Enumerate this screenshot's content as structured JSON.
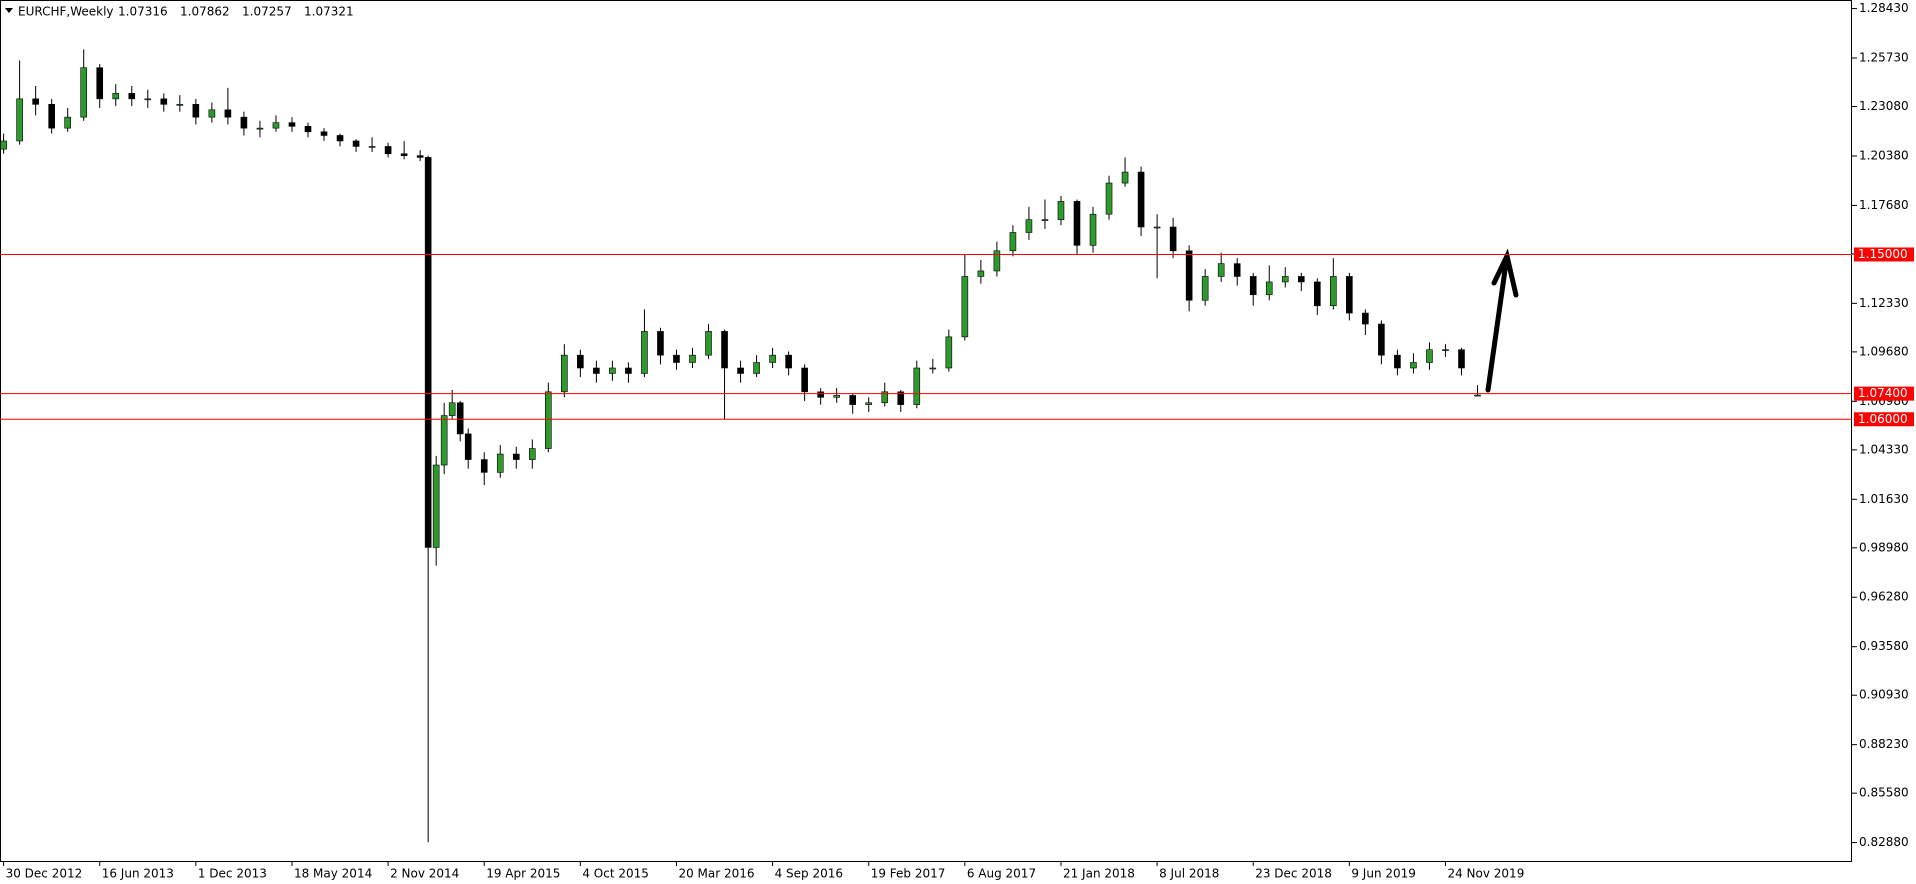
{
  "chart_data": {
    "type": "candlestick",
    "title": "EURCHF,Weekly",
    "x": [
      0,
      4,
      8,
      12,
      16,
      20,
      24,
      28,
      32,
      36,
      40,
      44,
      48,
      52,
      56,
      60,
      64,
      68,
      72,
      76,
      80,
      84,
      88,
      92,
      96,
      100,
      104,
      106,
      108,
      110,
      112,
      114,
      116,
      120,
      124,
      128,
      132,
      136,
      140,
      144,
      148,
      152,
      156,
      160,
      164,
      168,
      172,
      176,
      180,
      184,
      188,
      192,
      196,
      200,
      204,
      208,
      212,
      216,
      220,
      224,
      228,
      232,
      236,
      240,
      244,
      248,
      252,
      256,
      260,
      264,
      268,
      272,
      276,
      280,
      284,
      288,
      292,
      296,
      300,
      304,
      308,
      312,
      316,
      320,
      324,
      328,
      332,
      336,
      340,
      344,
      348,
      352,
      356,
      360,
      364,
      368
    ],
    "open": [
      1.2075,
      1.212,
      1.235,
      1.232,
      1.219,
      1.225,
      1.252,
      1.235,
      1.238,
      1.235,
      1.235,
      1.232,
      1.232,
      1.225,
      1.229,
      1.225,
      1.219,
      1.219,
      1.222,
      1.22,
      1.217,
      1.215,
      1.212,
      1.209,
      1.209,
      1.205,
      1.204,
      1.203,
      0.99,
      1.035,
      1.062,
      1.069,
      1.052,
      1.038,
      1.031,
      1.041,
      1.038,
      1.044,
      1.075,
      1.095,
      1.088,
      1.085,
      1.088,
      1.085,
      1.108,
      1.095,
      1.091,
      1.095,
      1.108,
      1.088,
      1.085,
      1.091,
      1.095,
      1.088,
      1.075,
      1.072,
      1.073,
      1.068,
      1.069,
      1.075,
      1.068,
      1.088,
      1.088,
      1.105,
      1.138,
      1.141,
      1.152,
      1.162,
      1.169,
      1.169,
      1.179,
      1.155,
      1.172,
      1.189,
      1.195,
      1.165,
      1.165,
      1.152,
      1.125,
      1.138,
      1.145,
      1.138,
      1.128,
      1.135,
      1.138,
      1.135,
      1.122,
      1.138,
      1.118,
      1.112,
      1.095,
      1.088,
      1.091,
      1.098,
      1.098,
      1.07316
    ],
    "high": [
      1.216,
      1.256,
      1.242,
      1.235,
      1.23,
      1.262,
      1.254,
      1.243,
      1.242,
      1.24,
      1.238,
      1.237,
      1.235,
      1.233,
      1.241,
      1.228,
      1.223,
      1.226,
      1.225,
      1.222,
      1.219,
      1.216,
      1.213,
      1.214,
      1.211,
      1.212,
      1.207,
      1.204,
      1.04,
      1.069,
      1.076,
      1.07,
      1.055,
      1.042,
      1.046,
      1.045,
      1.049,
      1.08,
      1.101,
      1.098,
      1.092,
      1.092,
      1.091,
      1.12,
      1.11,
      1.098,
      1.099,
      1.112,
      1.109,
      1.092,
      1.095,
      1.099,
      1.097,
      1.09,
      1.077,
      1.077,
      1.074,
      1.072,
      1.08,
      1.076,
      1.092,
      1.093,
      1.109,
      1.15,
      1.147,
      1.157,
      1.166,
      1.176,
      1.18,
      1.182,
      1.18,
      1.176,
      1.193,
      1.203,
      1.198,
      1.172,
      1.17,
      1.155,
      1.142,
      1.151,
      1.148,
      1.14,
      1.144,
      1.143,
      1.14,
      1.137,
      1.148,
      1.14,
      1.12,
      1.114,
      1.098,
      1.096,
      1.102,
      1.101,
      1.099,
      1.07862
    ],
    "low": [
      1.205,
      1.21,
      1.226,
      1.216,
      1.217,
      1.223,
      1.23,
      1.231,
      1.231,
      1.23,
      1.228,
      1.228,
      1.221,
      1.222,
      1.221,
      1.215,
      1.214,
      1.217,
      1.217,
      1.214,
      1.212,
      1.209,
      1.206,
      1.206,
      1.203,
      1.202,
      1.201,
      0.829,
      0.98,
      1.03,
      1.06,
      1.048,
      1.033,
      1.024,
      1.028,
      1.033,
      1.033,
      1.042,
      1.072,
      1.083,
      1.08,
      1.081,
      1.08,
      1.083,
      1.09,
      1.087,
      1.088,
      1.093,
      1.06,
      1.08,
      1.083,
      1.088,
      1.084,
      1.07,
      1.068,
      1.069,
      1.063,
      1.064,
      1.067,
      1.064,
      1.066,
      1.085,
      1.086,
      1.103,
      1.134,
      1.138,
      1.149,
      1.158,
      1.164,
      1.166,
      1.15,
      1.151,
      1.169,
      1.187,
      1.16,
      1.137,
      1.148,
      1.119,
      1.122,
      1.135,
      1.133,
      1.122,
      1.125,
      1.132,
      1.13,
      1.117,
      1.12,
      1.114,
      1.106,
      1.09,
      1.084,
      1.085,
      1.087,
      1.094,
      1.084,
      1.07257
    ],
    "close": [
      1.212,
      1.235,
      1.232,
      1.219,
      1.225,
      1.252,
      1.235,
      1.238,
      1.235,
      1.235,
      1.232,
      1.232,
      1.225,
      1.229,
      1.225,
      1.219,
      1.219,
      1.222,
      1.22,
      1.217,
      1.215,
      1.212,
      1.209,
      1.209,
      1.205,
      1.204,
      1.203,
      0.99,
      1.035,
      1.062,
      1.069,
      1.052,
      1.038,
      1.031,
      1.041,
      1.038,
      1.044,
      1.075,
      1.095,
      1.088,
      1.085,
      1.088,
      1.085,
      1.108,
      1.095,
      1.091,
      1.095,
      1.108,
      1.088,
      1.085,
      1.091,
      1.095,
      1.088,
      1.075,
      1.072,
      1.073,
      1.068,
      1.069,
      1.075,
      1.068,
      1.088,
      1.088,
      1.105,
      1.138,
      1.141,
      1.152,
      1.162,
      1.169,
      1.169,
      1.179,
      1.155,
      1.172,
      1.189,
      1.195,
      1.165,
      1.165,
      1.152,
      1.125,
      1.138,
      1.145,
      1.138,
      1.128,
      1.135,
      1.138,
      1.135,
      1.122,
      1.138,
      1.118,
      1.112,
      1.095,
      1.088,
      1.091,
      1.098,
      1.098,
      1.088,
      1.07321
    ],
    "up_color": "#2e9a2e",
    "down_color": "#000000",
    "xlim": [
      -0.9,
      461.5
    ],
    "xticks": [
      {
        "value": 0,
        "label": "30 Dec 2012"
      },
      {
        "value": 24,
        "label": "16 Jun 2013"
      },
      {
        "value": 48,
        "label": "1 Dec 2013"
      },
      {
        "value": 72,
        "label": "18 May 2014"
      },
      {
        "value": 96,
        "label": "2 Nov 2014"
      },
      {
        "value": 120,
        "label": "19 Apr 2015"
      },
      {
        "value": 144,
        "label": "4 Oct 2015"
      },
      {
        "value": 168,
        "label": "20 Mar 2016"
      },
      {
        "value": 192,
        "label": "4 Sep 2016"
      },
      {
        "value": 216,
        "label": "19 Feb 2017"
      },
      {
        "value": 240,
        "label": "6 Aug 2017"
      },
      {
        "value": 264,
        "label": "21 Jan 2018"
      },
      {
        "value": 288,
        "label": "8 Jul 2018"
      },
      {
        "value": 312,
        "label": "23 Dec 2018"
      },
      {
        "value": 336,
        "label": "9 Jun 2019"
      },
      {
        "value": 360,
        "label": "24 Nov 2019"
      }
    ],
    "ylim": [
      0.81875,
      1.28898
    ],
    "yticks": [
      {
        "value": 1.2843,
        "label": "1.28430"
      },
      {
        "value": 1.2573,
        "label": "1.25730"
      },
      {
        "value": 1.2308,
        "label": "1.23080"
      },
      {
        "value": 1.2038,
        "label": "1.20380"
      },
      {
        "value": 1.1768,
        "label": "1.17680"
      },
      {
        "value": 1.1503,
        "label": "1.15030"
      },
      {
        "value": 1.1233,
        "label": "1.12330"
      },
      {
        "value": 1.0968,
        "label": "1.09680"
      },
      {
        "value": 1.0698,
        "label": "1.06980"
      },
      {
        "value": 1.0433,
        "label": "1.04330"
      },
      {
        "value": 1.0163,
        "label": "1.01630"
      },
      {
        "value": 0.9898,
        "label": "0.98980"
      },
      {
        "value": 0.9628,
        "label": "0.96280"
      },
      {
        "value": 0.9358,
        "label": "0.93580"
      },
      {
        "value": 0.9093,
        "label": "0.90930"
      },
      {
        "value": 0.8823,
        "label": "0.88230"
      },
      {
        "value": 0.8558,
        "label": "0.85580"
      },
      {
        "value": 0.8288,
        "label": "0.82880"
      }
    ],
    "levels": [
      {
        "value": 1.15,
        "label": "1.15000"
      },
      {
        "value": 1.074,
        "label": "1.07400"
      },
      {
        "value": 1.06,
        "label": "1.06000"
      }
    ],
    "level_color": "#ff0000"
  }
}
